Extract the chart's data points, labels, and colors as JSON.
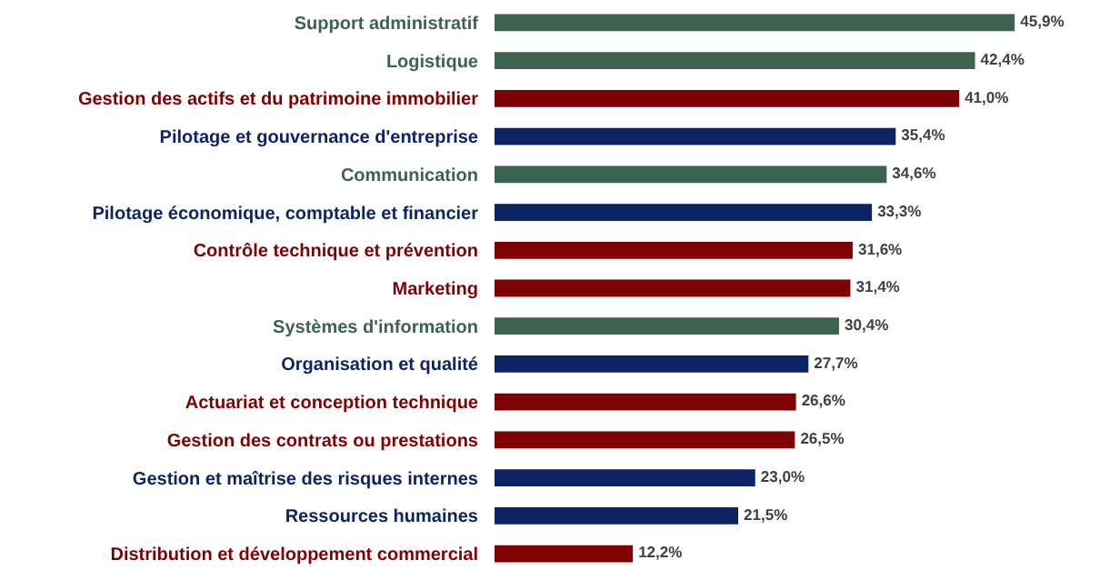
{
  "chart_data": {
    "type": "bar",
    "orientation": "horizontal",
    "categories": [
      "Support administratif",
      "Logistique",
      "Gestion des actifs et du patrimoine immobilier",
      "Pilotage et gouvernance d'entreprise",
      "Communication",
      "Pilotage économique, comptable et financier",
      "Contrôle technique et prévention",
      "Marketing",
      "Systèmes d'information",
      "Organisation et qualité",
      "Actuariat et conception technique",
      "Gestion des contrats ou prestations",
      "Gestion et maîtrise des risques internes",
      "Ressources humaines",
      "Distribution et développement commercial"
    ],
    "values": [
      45.9,
      42.4,
      41.0,
      35.4,
      34.6,
      33.3,
      31.6,
      31.4,
      30.4,
      27.7,
      26.6,
      26.5,
      23.0,
      21.5,
      12.2
    ],
    "colors": [
      "#3b6350",
      "#3b6350",
      "#7f0000",
      "#0c2463",
      "#3b6350",
      "#0c2463",
      "#7f0000",
      "#7f0000",
      "#3b6350",
      "#0c2463",
      "#7f0000",
      "#7f0000",
      "#0c2463",
      "#0c2463",
      "#7f0000"
    ],
    "value_labels": [
      "45,9%",
      "42,4%",
      "41,0%",
      "35,4%",
      "34,6%",
      "33,3%",
      "31,6%",
      "31,4%",
      "30,4%",
      "27,7%",
      "26,6%",
      "26,5%",
      "23,0%",
      "21,5%",
      "12,2%"
    ],
    "legend": false
  }
}
